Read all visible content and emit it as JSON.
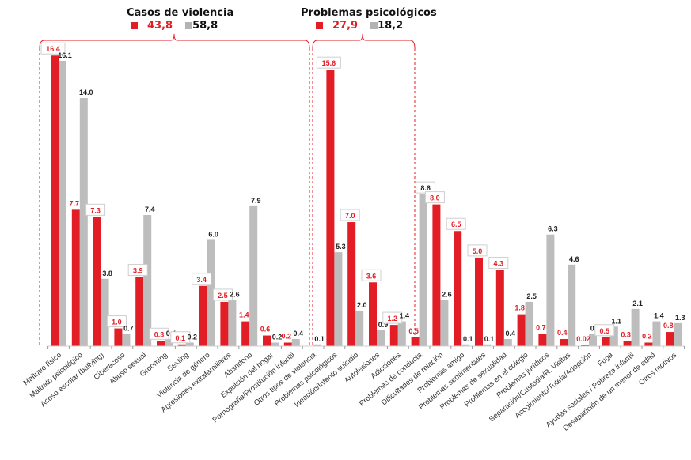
{
  "chart_data": {
    "type": "bar",
    "title": "",
    "xlabel": "",
    "ylabel": "",
    "ylim": [
      0,
      16.5
    ],
    "grid": false,
    "colors": {
      "red": "#e31d25",
      "gray": "#bdbdbd",
      "bracket": "#e31d25"
    },
    "groups": [
      {
        "name": "Casos de violencia",
        "legend": {
          "red_value": "43,8",
          "gray_value": "58,8"
        },
        "category_range": [
          0,
          13
        ]
      },
      {
        "name": "Problemas psicológicos",
        "legend": {
          "red_value": "27,9",
          "gray_value": "18,2"
        },
        "category_range": [
          14,
          19
        ]
      }
    ],
    "categories": [
      "Maltrato físico",
      "Maltrato psicológico",
      "Acoso escolar (bullying)",
      "Ciberacoso",
      "Abuso sexual",
      "Grooming",
      "Sexting",
      "Violencia de género",
      "Agresiones extrafamiliares",
      "Abandono",
      "Expulsión del hogar",
      "Pornografía/Prostitución infantil",
      "Otros tipos de violencia",
      "Problemas psicológicos",
      "Ideación/Intento suicidio",
      "Autolesiones",
      "Adicciones",
      "Problemas de conducta",
      "Dificultades de relación",
      "Problemas amigo",
      "Problemas sentimentales",
      "Problemas de sexualidad",
      "Problemas en el colegio",
      "Problemas jurídicos",
      "Separación/Custodia/R. Visitas",
      "Acogimiento/Tutela/Adopción",
      "Fuga",
      "Ayudas sociales / Pobreza infantil",
      "Desaparición de un menor de edad",
      "Otros motivos"
    ],
    "series": [
      {
        "name": "red",
        "color": "#e31d25",
        "values": [
          16.4,
          7.7,
          7.3,
          1.0,
          3.9,
          0.3,
          0.1,
          3.4,
          2.5,
          1.4,
          0.6,
          0.2,
          null,
          15.6,
          7.0,
          3.6,
          1.2,
          0.5,
          8.0,
          6.5,
          5.0,
          4.3,
          1.8,
          0.7,
          0.4,
          0.02,
          0.5,
          0.3,
          0.2,
          0.8
        ],
        "labels": [
          "16.4",
          "7.7",
          "7.3",
          "1.0",
          "3.9",
          "0.3",
          "0.1",
          "3.4",
          "2.5",
          "1.4",
          "0.6",
          "0.2",
          "",
          "15.6",
          "7.0",
          "3.6",
          "1.2",
          "0.5",
          "8.0",
          "6.5",
          "5.0",
          "4.3",
          "1.8",
          "0.7",
          "0.4",
          "0.02",
          "0.5",
          "0.3",
          "0.2",
          "0.8"
        ],
        "boxed": [
          true,
          false,
          true,
          true,
          true,
          true,
          true,
          true,
          true,
          false,
          false,
          false,
          false,
          true,
          true,
          true,
          true,
          false,
          true,
          true,
          true,
          true,
          false,
          false,
          false,
          false,
          true,
          false,
          false,
          false
        ]
      },
      {
        "name": "gray",
        "color": "#bdbdbd",
        "values": [
          16.1,
          14.0,
          3.8,
          0.7,
          7.4,
          0.4,
          0.2,
          6.0,
          2.6,
          7.9,
          0.2,
          0.4,
          0.1,
          5.3,
          2.0,
          0.9,
          1.4,
          8.6,
          2.6,
          0.1,
          0.1,
          0.4,
          2.5,
          6.3,
          4.6,
          0.7,
          1.1,
          2.1,
          1.4,
          1.3
        ],
        "labels": [
          "16.1",
          "14.0",
          "3.8",
          "0.7",
          "7.4",
          "0.4",
          "0.2",
          "6.0",
          "2.6",
          "7.9",
          "0.2",
          "0.4",
          "0.1",
          "5.3",
          "2.0",
          "0.9",
          "1.4",
          "8.6",
          "2.6",
          "0.1",
          "0.1",
          "0.4",
          "2.5",
          "6.3",
          "4.6",
          "0.7",
          "1.1",
          "2.1",
          "1.4",
          "1.3"
        ],
        "boxed": [
          false,
          false,
          false,
          false,
          false,
          false,
          false,
          false,
          false,
          false,
          false,
          false,
          false,
          false,
          false,
          false,
          false,
          true,
          false,
          false,
          false,
          false,
          false,
          false,
          false,
          false,
          false,
          false,
          false,
          false
        ]
      }
    ]
  }
}
